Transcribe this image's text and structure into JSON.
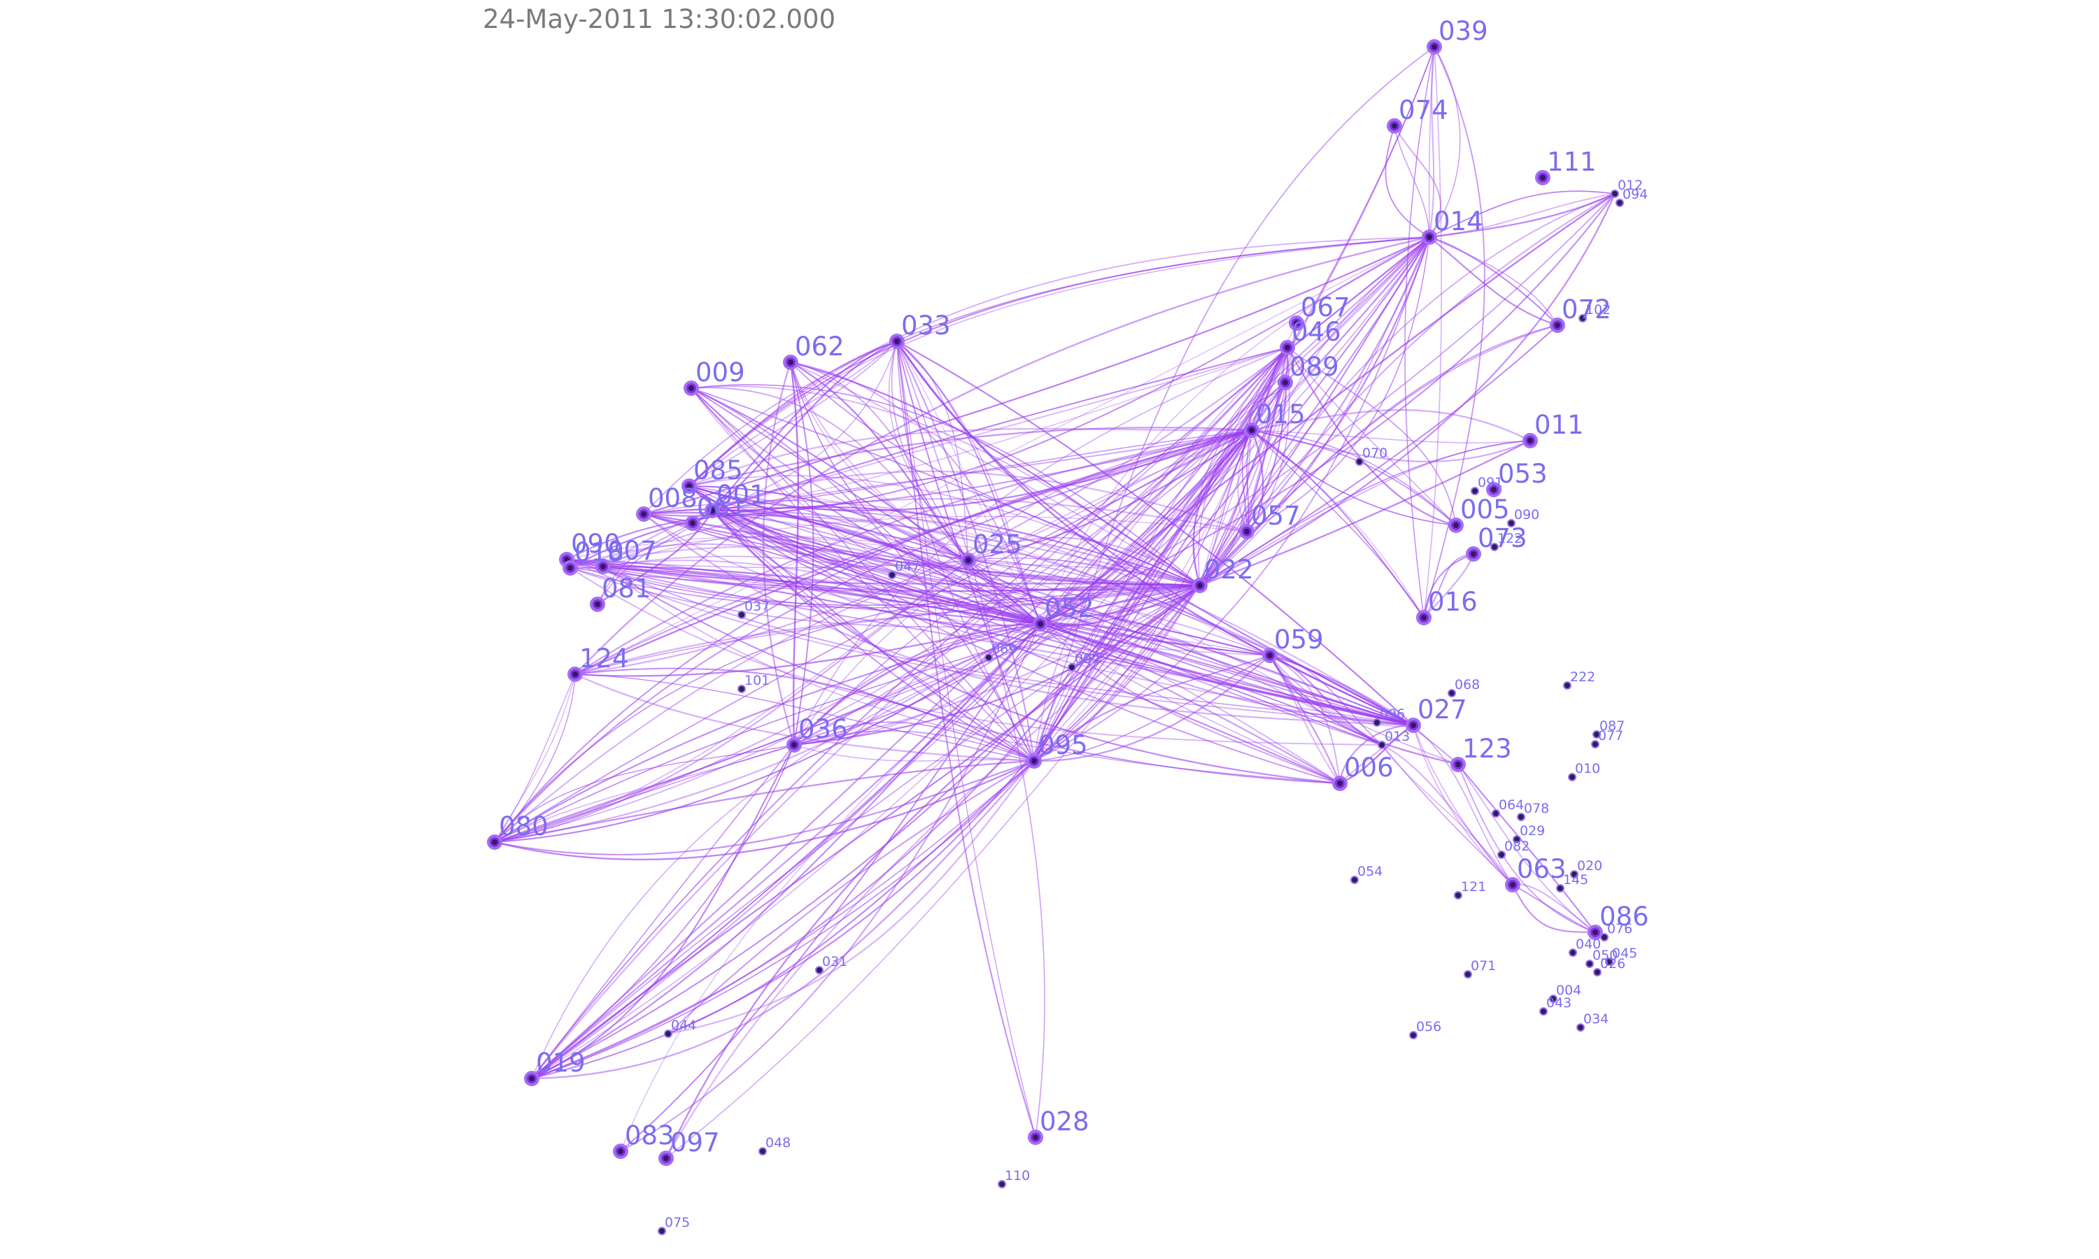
{
  "header": {
    "timestamp": "24-May-2011 13:30:02.000"
  },
  "colors": {
    "edge": "#9b3ef0",
    "node_fill": "#8a2be2",
    "node_ring": "#a070f0",
    "minor_node": "#2a2060",
    "label": "#7b6cf0",
    "timestamp": "#7a7a7a"
  },
  "nodes": [
    {
      "id": "039",
      "major": true
    },
    {
      "id": "074",
      "major": true
    },
    {
      "id": "111",
      "major": true
    },
    {
      "id": "012",
      "major": false
    },
    {
      "id": "094",
      "major": false
    },
    {
      "id": "014",
      "major": true
    },
    {
      "id": "072",
      "major": true
    },
    {
      "id": "102",
      "major": false
    },
    {
      "id": "067",
      "major": true
    },
    {
      "id": "046",
      "major": true
    },
    {
      "id": "089",
      "major": true
    },
    {
      "id": "015",
      "major": true
    },
    {
      "id": "011",
      "major": true
    },
    {
      "id": "070",
      "major": false
    },
    {
      "id": "053",
      "major": true
    },
    {
      "id": "091",
      "major": false
    },
    {
      "id": "005",
      "major": true
    },
    {
      "id": "090",
      "major": false
    },
    {
      "id": "073",
      "major": true
    },
    {
      "id": "122",
      "major": false
    },
    {
      "id": "057",
      "major": true
    },
    {
      "id": "022",
      "major": true
    },
    {
      "id": "016",
      "major": true
    },
    {
      "id": "059",
      "major": true
    },
    {
      "id": "068",
      "major": false
    },
    {
      "id": "222",
      "major": false
    },
    {
      "id": "096",
      "major": false
    },
    {
      "id": "027",
      "major": true
    },
    {
      "id": "013",
      "major": false
    },
    {
      "id": "123",
      "major": true
    },
    {
      "id": "087",
      "major": false
    },
    {
      "id": "077",
      "major": false
    },
    {
      "id": "006",
      "major": true
    },
    {
      "id": "010",
      "major": false
    },
    {
      "id": "064",
      "major": false
    },
    {
      "id": "078",
      "major": false
    },
    {
      "id": "029",
      "major": false
    },
    {
      "id": "082",
      "major": false
    },
    {
      "id": "054",
      "major": false
    },
    {
      "id": "063",
      "major": true
    },
    {
      "id": "020",
      "major": false
    },
    {
      "id": "121",
      "major": false
    },
    {
      "id": "145",
      "major": false
    },
    {
      "id": "086",
      "major": true
    },
    {
      "id": "076",
      "major": false
    },
    {
      "id": "040",
      "major": false
    },
    {
      "id": "050",
      "major": false
    },
    {
      "id": "045",
      "major": false
    },
    {
      "id": "026",
      "major": false
    },
    {
      "id": "071",
      "major": false
    },
    {
      "id": "004",
      "major": false
    },
    {
      "id": "043",
      "major": false
    },
    {
      "id": "034",
      "major": false
    },
    {
      "id": "056",
      "major": false
    },
    {
      "id": "009",
      "major": true
    },
    {
      "id": "062",
      "major": true
    },
    {
      "id": "033",
      "major": true
    },
    {
      "id": "085",
      "major": true
    },
    {
      "id": "001",
      "major": true
    },
    {
      "id": "061",
      "major": true
    },
    {
      "id": "008",
      "major": true
    },
    {
      "id": "090b",
      "label": "090",
      "major": true
    },
    {
      "id": "007",
      "major": true
    },
    {
      "id": "018",
      "major": true
    },
    {
      "id": "081",
      "major": true
    },
    {
      "id": "025",
      "major": true
    },
    {
      "id": "047",
      "major": false
    },
    {
      "id": "037",
      "major": false
    },
    {
      "id": "052",
      "major": true
    },
    {
      "id": "069",
      "major": false
    },
    {
      "id": "092",
      "major": false
    },
    {
      "id": "101",
      "major": false
    },
    {
      "id": "124",
      "major": true
    },
    {
      "id": "036",
      "major": true
    },
    {
      "id": "095",
      "major": true
    },
    {
      "id": "080",
      "major": true
    },
    {
      "id": "031",
      "major": false
    },
    {
      "id": "044",
      "major": false
    },
    {
      "id": "019",
      "major": true
    },
    {
      "id": "083",
      "major": true
    },
    {
      "id": "097",
      "major": true
    },
    {
      "id": "048",
      "major": false
    },
    {
      "id": "028",
      "major": true
    },
    {
      "id": "110",
      "major": false
    },
    {
      "id": "075",
      "major": false
    }
  ],
  "edges": [
    [
      "009",
      "025"
    ],
    [
      "009",
      "052"
    ],
    [
      "009",
      "022"
    ],
    [
      "009",
      "095"
    ],
    [
      "062",
      "025"
    ],
    [
      "062",
      "052"
    ],
    [
      "062",
      "022"
    ],
    [
      "062",
      "036"
    ],
    [
      "033",
      "085"
    ],
    [
      "033",
      "001"
    ],
    [
      "033",
      "025"
    ],
    [
      "033",
      "052"
    ],
    [
      "033",
      "095"
    ],
    [
      "033",
      "027"
    ],
    [
      "085",
      "025"
    ],
    [
      "085",
      "052"
    ],
    [
      "085",
      "022"
    ],
    [
      "085",
      "015"
    ],
    [
      "085",
      "014"
    ],
    [
      "085",
      "027"
    ],
    [
      "085",
      "059"
    ],
    [
      "001",
      "052"
    ],
    [
      "001",
      "022"
    ],
    [
      "001",
      "015"
    ],
    [
      "001",
      "046"
    ],
    [
      "001",
      "027"
    ],
    [
      "001",
      "006"
    ],
    [
      "001",
      "095"
    ],
    [
      "008",
      "052"
    ],
    [
      "008",
      "022"
    ],
    [
      "008",
      "014"
    ],
    [
      "008",
      "027"
    ],
    [
      "008",
      "059"
    ],
    [
      "090b",
      "025"
    ],
    [
      "090b",
      "052"
    ],
    [
      "090b",
      "022"
    ],
    [
      "090b",
      "027"
    ],
    [
      "007",
      "052"
    ],
    [
      "007",
      "057"
    ],
    [
      "007",
      "027"
    ],
    [
      "007",
      "006"
    ],
    [
      "018",
      "052"
    ],
    [
      "018",
      "022"
    ],
    [
      "018",
      "013"
    ],
    [
      "081",
      "001"
    ],
    [
      "025",
      "022"
    ],
    [
      "025",
      "015"
    ],
    [
      "025",
      "027"
    ],
    [
      "025",
      "059"
    ],
    [
      "052",
      "015"
    ],
    [
      "052",
      "022"
    ],
    [
      "052",
      "014"
    ],
    [
      "052",
      "046"
    ],
    [
      "052",
      "027"
    ],
    [
      "052",
      "006"
    ],
    [
      "052",
      "013"
    ],
    [
      "080",
      "095"
    ],
    [
      "080",
      "052"
    ],
    [
      "080",
      "022"
    ],
    [
      "080",
      "015"
    ],
    [
      "080",
      "014"
    ],
    [
      "080",
      "036"
    ],
    [
      "080",
      "025"
    ],
    [
      "124",
      "095"
    ],
    [
      "124",
      "022"
    ],
    [
      "124",
      "015"
    ],
    [
      "124",
      "014"
    ],
    [
      "124",
      "080"
    ],
    [
      "036",
      "095"
    ],
    [
      "036",
      "052"
    ],
    [
      "036",
      "022"
    ],
    [
      "036",
      "015"
    ],
    [
      "036",
      "046"
    ],
    [
      "019",
      "095"
    ],
    [
      "019",
      "022"
    ],
    [
      "019",
      "015"
    ],
    [
      "019",
      "014"
    ],
    [
      "019",
      "052"
    ],
    [
      "019",
      "046"
    ],
    [
      "019",
      "036"
    ],
    [
      "083",
      "052"
    ],
    [
      "097",
      "022"
    ],
    [
      "044",
      "095"
    ],
    [
      "095",
      "022"
    ],
    [
      "095",
      "015"
    ],
    [
      "095",
      "014"
    ],
    [
      "095",
      "046"
    ],
    [
      "095",
      "089"
    ],
    [
      "095",
      "059"
    ],
    [
      "059",
      "027"
    ],
    [
      "059",
      "006"
    ],
    [
      "059",
      "013"
    ],
    [
      "059",
      "123"
    ],
    [
      "022",
      "014"
    ],
    [
      "022",
      "015"
    ],
    [
      "022",
      "046"
    ],
    [
      "022",
      "067"
    ],
    [
      "022",
      "089"
    ],
    [
      "057",
      "015"
    ],
    [
      "057",
      "046"
    ],
    [
      "057",
      "014"
    ],
    [
      "015",
      "046"
    ],
    [
      "015",
      "089"
    ],
    [
      "015",
      "016"
    ],
    [
      "014",
      "039"
    ],
    [
      "014",
      "074"
    ],
    [
      "039",
      "016"
    ],
    [
      "039",
      "095"
    ],
    [
      "011",
      "015"
    ],
    [
      "011",
      "022"
    ],
    [
      "012",
      "014"
    ],
    [
      "012",
      "052"
    ],
    [
      "012",
      "022"
    ],
    [
      "072",
      "014"
    ],
    [
      "072",
      "022"
    ],
    [
      "005",
      "046"
    ],
    [
      "005",
      "015"
    ],
    [
      "073",
      "016"
    ],
    [
      "028",
      "033"
    ],
    [
      "027",
      "063"
    ],
    [
      "013",
      "063"
    ],
    [
      "006",
      "027"
    ],
    [
      "063",
      "086"
    ],
    [
      "086",
      "123"
    ]
  ]
}
